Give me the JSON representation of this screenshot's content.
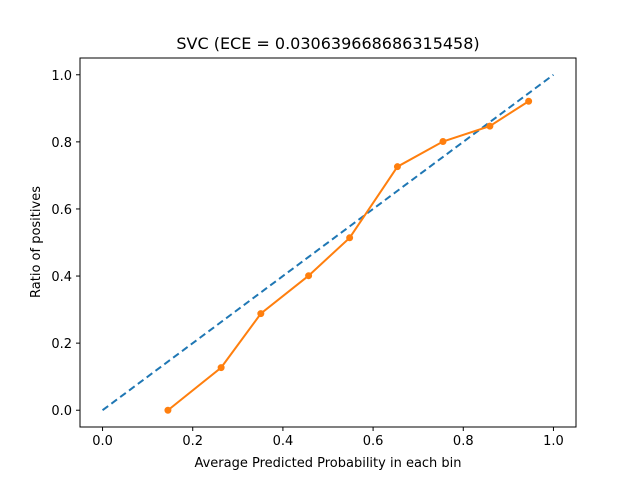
{
  "chart_data": {
    "type": "line",
    "title": "SVC (ECE = 0.030639668686315458)",
    "xlabel": "Average Predicted Probability in each bin",
    "ylabel": "Ratio of positives",
    "xlim": [
      -0.05,
      1.05
    ],
    "ylim": [
      -0.05,
      1.05
    ],
    "xticks": [
      0.0,
      0.2,
      0.4,
      0.6,
      0.8,
      1.0
    ],
    "yticks": [
      0.0,
      0.2,
      0.4,
      0.6,
      0.8,
      1.0
    ],
    "xtick_labels": [
      "0.0",
      "0.2",
      "0.4",
      "0.6",
      "0.8",
      "1.0"
    ],
    "ytick_labels": [
      "0.0",
      "0.2",
      "0.4",
      "0.6",
      "0.8",
      "1.0"
    ],
    "grid": false,
    "series": [
      {
        "style": "dashed",
        "color": "#1f77b4",
        "x": [
          0.0,
          1.0
        ],
        "y": [
          0.0,
          1.0
        ]
      },
      {
        "style": "solid-with-markers",
        "color": "#ff7f0e",
        "x": [
          0.145,
          0.263,
          0.351,
          0.457,
          0.548,
          0.654,
          0.755,
          0.859,
          0.945
        ],
        "y": [
          0.0,
          0.127,
          0.288,
          0.401,
          0.514,
          0.726,
          0.801,
          0.847,
          0.921
        ]
      }
    ]
  }
}
